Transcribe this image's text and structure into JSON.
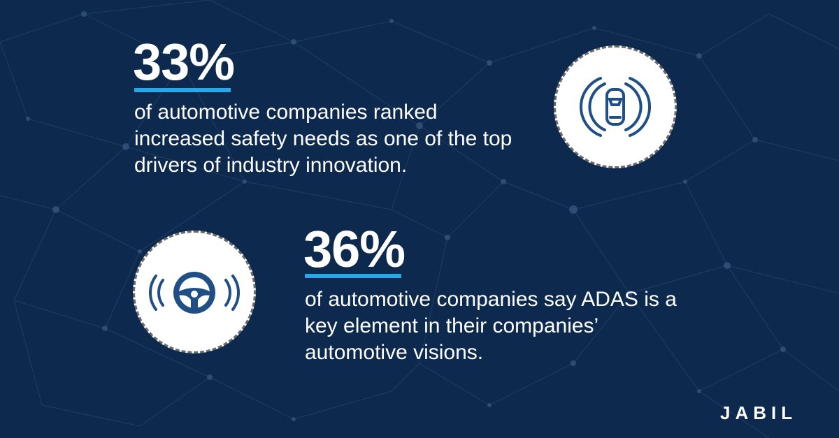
{
  "stats": [
    {
      "value": "33%",
      "caption_lines": [
        "of automotive companies ranked",
        "increased safety needs as one of the top",
        "drivers of industry innovation."
      ],
      "icon": "car-sensor-icon"
    },
    {
      "value": "36%",
      "caption_lines": [
        "of automotive companies say ADAS is a",
        "key element in their companies’",
        "automotive visions."
      ],
      "icon": "steering-wheel-sensor-icon"
    }
  ],
  "brand": {
    "logo_text": "JABIL"
  },
  "colors": {
    "background": "#0d2a4e",
    "accent": "#2aa7e8",
    "icon": "#1f4f86",
    "text": "#ffffff"
  }
}
